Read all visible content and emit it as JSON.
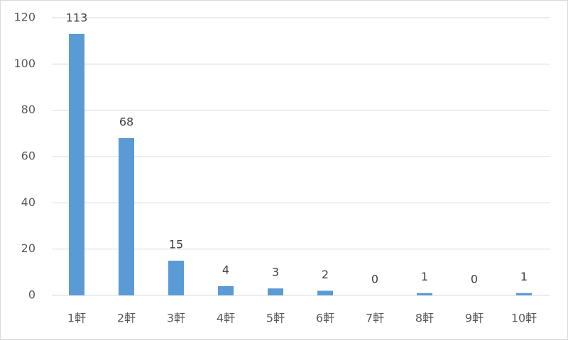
{
  "chart_data": {
    "type": "bar",
    "categories": [
      "1軒",
      "2軒",
      "3軒",
      "4軒",
      "5軒",
      "6軒",
      "7軒",
      "8軒",
      "9軒",
      "10軒"
    ],
    "values": [
      113,
      68,
      15,
      4,
      3,
      2,
      0,
      1,
      0,
      1
    ],
    "color": "#5b9bd5",
    "ylim": [
      0,
      120
    ],
    "yticks": [
      0,
      20,
      40,
      60,
      80,
      100,
      120
    ],
    "grid": true,
    "data_labels": true
  }
}
